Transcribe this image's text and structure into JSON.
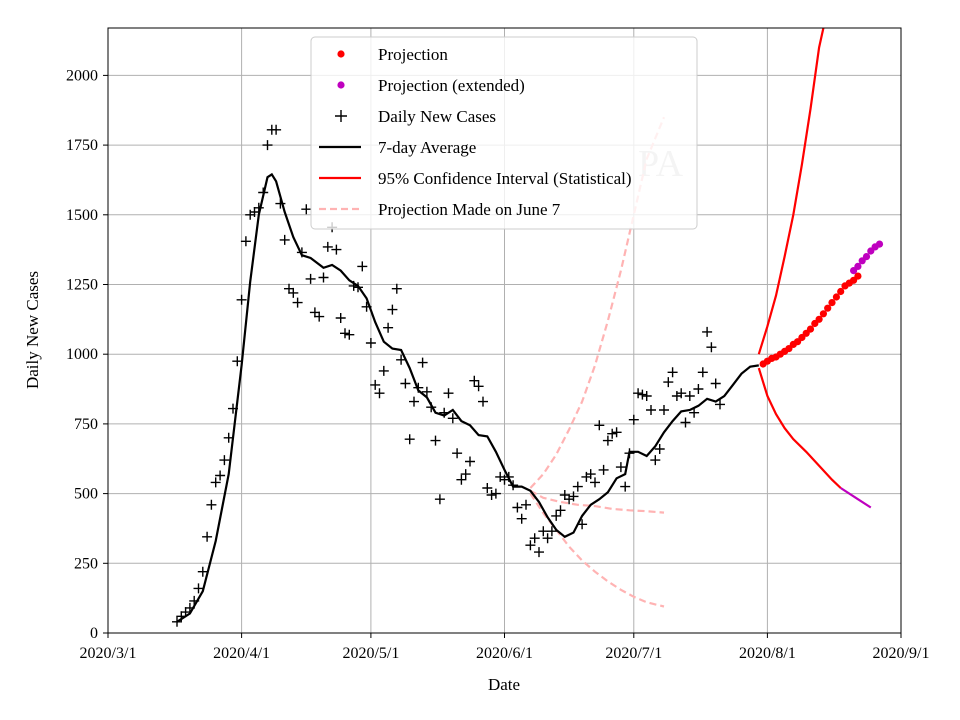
{
  "chart_data": {
    "type": "scatter+line",
    "title": "",
    "watermark": "PA",
    "xlabel": "Date",
    "ylabel": "Daily New Cases",
    "xlim": [
      "2020-03-01",
      "2020-09-01"
    ],
    "ylim": [
      0,
      2170
    ],
    "x_ticks": [
      "2020-03-01",
      "2020-04-01",
      "2020-05-01",
      "2020-06-01",
      "2020-07-01",
      "2020-08-01",
      "2020-09-01"
    ],
    "x_tick_labels": [
      "2020/3/1",
      "2020/4/1",
      "2020/5/1",
      "2020/6/1",
      "2020/7/1",
      "2020/8/1",
      "2020/9/1"
    ],
    "y_ticks": [
      0,
      250,
      500,
      750,
      1000,
      1250,
      1500,
      1750,
      2000
    ],
    "grid": true,
    "legend_position": "top-center",
    "legend": [
      {
        "key": "projection",
        "label": "Projection",
        "color": "#ff0000",
        "marker": "dot"
      },
      {
        "key": "projection_ext",
        "label": "Projection (extended)",
        "color": "#bf00bf",
        "marker": "dot"
      },
      {
        "key": "daily",
        "label": "Daily New Cases",
        "color": "#000000",
        "marker": "plus"
      },
      {
        "key": "avg",
        "label": "7-day Average",
        "color": "#000000",
        "marker": "line"
      },
      {
        "key": "ci",
        "label": "95% Confidence Interval (Statistical)",
        "color": "#ff0000",
        "marker": "line"
      },
      {
        "key": "june7",
        "label": "Projection Made on June 7",
        "color": "#ffb3b3",
        "marker": "dashed"
      }
    ],
    "colors": {
      "projection": "#ff0000",
      "projection_ext": "#bf00bf",
      "daily": "#000000",
      "avg": "#000000",
      "ci": "#ff0000",
      "june7": "#ffb3b3"
    },
    "series": {
      "daily": {
        "name": "Daily New Cases",
        "start": "2020-03-17",
        "values": [
          40,
          60,
          75,
          90,
          115,
          160,
          220,
          345,
          460,
          540,
          565,
          620,
          700,
          805,
          975,
          1195,
          1405,
          1500,
          1510,
          1525,
          1580,
          1750,
          1805,
          1805,
          1540,
          1410,
          1235,
          1220,
          1185,
          1365,
          1520,
          1270,
          1150,
          1135,
          1275,
          1385,
          1455,
          1375,
          1130,
          1075,
          1070,
          1245,
          1240,
          1315,
          1170,
          1040,
          890,
          860,
          940,
          1095,
          1160,
          1235,
          980,
          895,
          695,
          830,
          880,
          970,
          865,
          810,
          690,
          480,
          790,
          860,
          770,
          645,
          550,
          570,
          615,
          905,
          885,
          830,
          520,
          495,
          500,
          560,
          550,
          560,
          530,
          450,
          410,
          460,
          315,
          340,
          290,
          365,
          340,
          365,
          420,
          440,
          495,
          480,
          490,
          525,
          390,
          560,
          570,
          540,
          745,
          585,
          690,
          715,
          720,
          595,
          525,
          645,
          765,
          860,
          855,
          850,
          800,
          620,
          660,
          800,
          900,
          935,
          850,
          860,
          755,
          850,
          790,
          875,
          935,
          1080,
          1025,
          895,
          820
        ]
      },
      "avg7": {
        "name": "7-day Average",
        "points": [
          [
            "2020-03-17",
            40
          ],
          [
            "2020-03-20",
            70
          ],
          [
            "2020-03-23",
            150
          ],
          [
            "2020-03-26",
            330
          ],
          [
            "2020-03-29",
            570
          ],
          [
            "2020-04-01",
            960
          ],
          [
            "2020-04-03",
            1260
          ],
          [
            "2020-04-05",
            1500
          ],
          [
            "2020-04-07",
            1635
          ],
          [
            "2020-04-08",
            1645
          ],
          [
            "2020-04-09",
            1620
          ],
          [
            "2020-04-11",
            1510
          ],
          [
            "2020-04-13",
            1420
          ],
          [
            "2020-04-15",
            1355
          ],
          [
            "2020-04-17",
            1345
          ],
          [
            "2020-04-20",
            1310
          ],
          [
            "2020-04-22",
            1320
          ],
          [
            "2020-04-24",
            1300
          ],
          [
            "2020-04-26",
            1265
          ],
          [
            "2020-04-28",
            1245
          ],
          [
            "2020-04-30",
            1200
          ],
          [
            "2020-05-02",
            1115
          ],
          [
            "2020-05-04",
            1045
          ],
          [
            "2020-05-06",
            1020
          ],
          [
            "2020-05-08",
            1015
          ],
          [
            "2020-05-10",
            950
          ],
          [
            "2020-05-12",
            870
          ],
          [
            "2020-05-14",
            845
          ],
          [
            "2020-05-16",
            790
          ],
          [
            "2020-05-18",
            780
          ],
          [
            "2020-05-20",
            800
          ],
          [
            "2020-05-22",
            760
          ],
          [
            "2020-05-24",
            745
          ],
          [
            "2020-05-26",
            710
          ],
          [
            "2020-05-28",
            705
          ],
          [
            "2020-05-30",
            650
          ],
          [
            "2020-06-01",
            585
          ],
          [
            "2020-06-03",
            525
          ],
          [
            "2020-06-05",
            525
          ],
          [
            "2020-06-07",
            510
          ],
          [
            "2020-06-09",
            470
          ],
          [
            "2020-06-11",
            415
          ],
          [
            "2020-06-13",
            370
          ],
          [
            "2020-06-15",
            345
          ],
          [
            "2020-06-17",
            360
          ],
          [
            "2020-06-19",
            420
          ],
          [
            "2020-06-21",
            460
          ],
          [
            "2020-06-23",
            480
          ],
          [
            "2020-06-25",
            505
          ],
          [
            "2020-06-27",
            555
          ],
          [
            "2020-06-29",
            570
          ],
          [
            "2020-06-30",
            650
          ],
          [
            "2020-07-02",
            650
          ],
          [
            "2020-07-04",
            635
          ],
          [
            "2020-07-06",
            670
          ],
          [
            "2020-07-08",
            720
          ],
          [
            "2020-07-10",
            760
          ],
          [
            "2020-07-12",
            795
          ],
          [
            "2020-07-14",
            800
          ],
          [
            "2020-07-16",
            815
          ],
          [
            "2020-07-18",
            840
          ],
          [
            "2020-07-20",
            830
          ],
          [
            "2020-07-22",
            850
          ],
          [
            "2020-07-24",
            890
          ],
          [
            "2020-07-26",
            930
          ],
          [
            "2020-07-28",
            955
          ],
          [
            "2020-07-30",
            960
          ]
        ]
      },
      "projection": {
        "name": "Projection",
        "start": "2020-07-31",
        "values": [
          965,
          975,
          985,
          990,
          1000,
          1010,
          1020,
          1035,
          1045,
          1060,
          1075,
          1090,
          1110,
          1125,
          1145,
          1165,
          1185,
          1205,
          1225,
          1245,
          1255,
          1265,
          1280
        ]
      },
      "projection_ext": {
        "name": "Projection (extended)",
        "start": "2020-08-21",
        "values": [
          1300,
          1315,
          1335,
          1350,
          1370,
          1385,
          1395
        ]
      },
      "ci_upper": {
        "name": "95% CI upper",
        "points": [
          [
            "2020-07-30",
            1000
          ],
          [
            "2020-08-01",
            1100
          ],
          [
            "2020-08-03",
            1210
          ],
          [
            "2020-08-05",
            1350
          ],
          [
            "2020-08-07",
            1500
          ],
          [
            "2020-08-09",
            1680
          ],
          [
            "2020-08-11",
            1880
          ],
          [
            "2020-08-13",
            2100
          ],
          [
            "2020-08-14",
            2170
          ]
        ]
      },
      "ci_lower": {
        "name": "95% CI lower",
        "points": [
          [
            "2020-07-30",
            950
          ],
          [
            "2020-08-01",
            850
          ],
          [
            "2020-08-03",
            785
          ],
          [
            "2020-08-05",
            735
          ],
          [
            "2020-08-07",
            695
          ],
          [
            "2020-08-10",
            650
          ],
          [
            "2020-08-13",
            600
          ],
          [
            "2020-08-16",
            550
          ],
          [
            "2020-08-18",
            520
          ]
        ]
      },
      "ci_lower_ext": {
        "name": "95% CI lower (extended)",
        "points": [
          [
            "2020-08-18",
            520
          ],
          [
            "2020-08-22",
            480
          ],
          [
            "2020-08-25",
            450
          ]
        ]
      },
      "june7_center": {
        "name": "Projection Made on June 7 (center)",
        "points": [
          [
            "2020-06-07",
            510
          ],
          [
            "2020-06-10",
            485
          ],
          [
            "2020-06-14",
            470
          ],
          [
            "2020-06-18",
            460
          ],
          [
            "2020-06-22",
            455
          ],
          [
            "2020-06-26",
            445
          ],
          [
            "2020-06-30",
            440
          ],
          [
            "2020-07-04",
            437
          ],
          [
            "2020-07-08",
            432
          ]
        ]
      },
      "june7_upper": {
        "name": "Projection Made on June 7 (upper)",
        "points": [
          [
            "2020-06-07",
            520
          ],
          [
            "2020-06-10",
            570
          ],
          [
            "2020-06-13",
            640
          ],
          [
            "2020-06-16",
            730
          ],
          [
            "2020-06-19",
            830
          ],
          [
            "2020-06-22",
            960
          ],
          [
            "2020-06-25",
            1120
          ],
          [
            "2020-06-28",
            1300
          ],
          [
            "2020-07-01",
            1500
          ],
          [
            "2020-07-04",
            1700
          ],
          [
            "2020-07-08",
            1850
          ]
        ]
      },
      "june7_lower": {
        "name": "Projection Made on June 7 (lower)",
        "points": [
          [
            "2020-06-07",
            500
          ],
          [
            "2020-06-10",
            430
          ],
          [
            "2020-06-13",
            370
          ],
          [
            "2020-06-16",
            310
          ],
          [
            "2020-06-19",
            260
          ],
          [
            "2020-06-22",
            220
          ],
          [
            "2020-06-25",
            185
          ],
          [
            "2020-06-28",
            155
          ],
          [
            "2020-07-01",
            130
          ],
          [
            "2020-07-04",
            110
          ],
          [
            "2020-07-08",
            95
          ]
        ]
      }
    }
  }
}
